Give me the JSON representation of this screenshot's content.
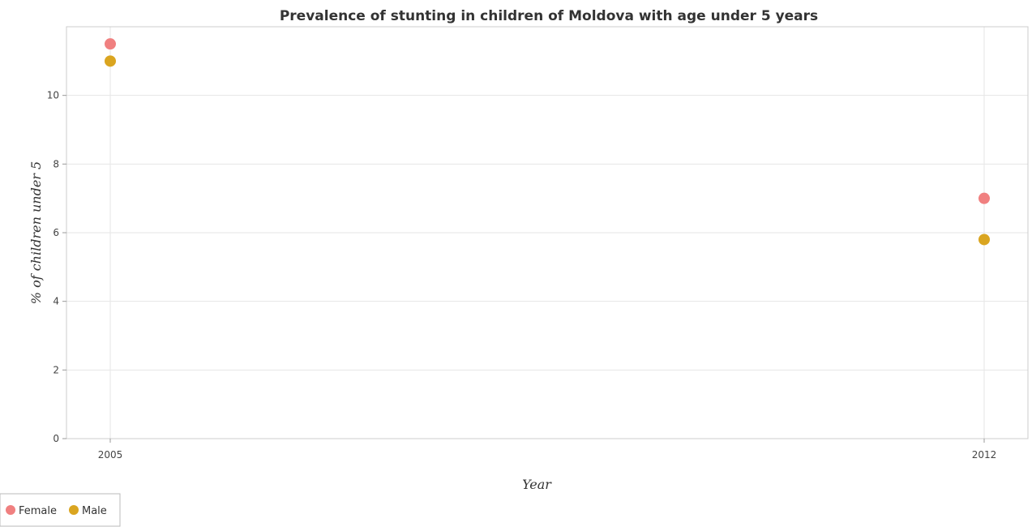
{
  "chart_data": {
    "type": "scatter",
    "title": "Prevalence of stunting in children of Moldova with age under 5 years",
    "xlabel": "Year",
    "ylabel": "% of children under 5",
    "categories": [
      "2005",
      "2012"
    ],
    "ylim": [
      0,
      12
    ],
    "yticks": [
      0,
      2,
      4,
      6,
      8,
      10
    ],
    "grid": true,
    "legend_position": "bottom-left",
    "series": [
      {
        "name": "Female",
        "color": "#f08080",
        "values": [
          11.5,
          7.0
        ]
      },
      {
        "name": "Male",
        "color": "#daa520",
        "values": [
          11.0,
          5.8
        ]
      }
    ]
  }
}
